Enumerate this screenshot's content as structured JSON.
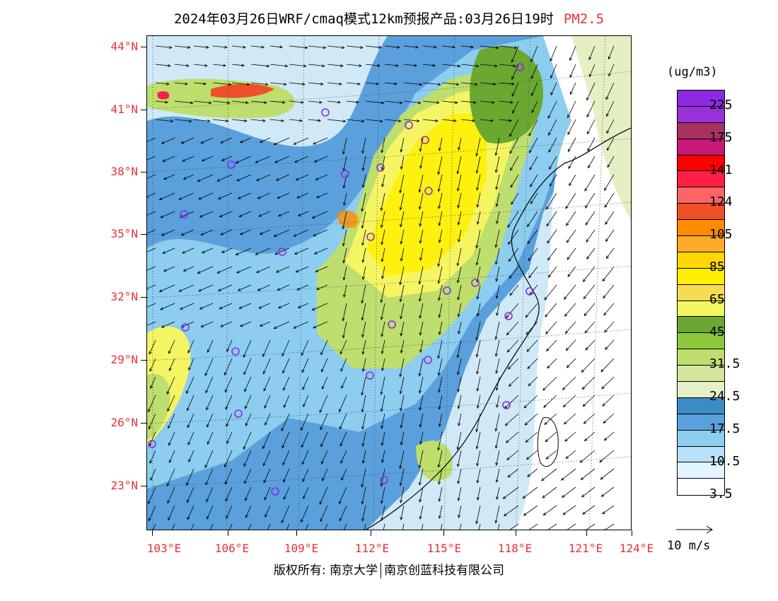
{
  "title": {
    "main": "2024年03月26日WRF/cmaq模式12km预报产品:03月26日19时",
    "species": "PM2.5",
    "species_color": "#e8313a"
  },
  "map": {
    "lat_labels": [
      "44°N",
      "41°N",
      "38°N",
      "35°N",
      "32°N",
      "29°N",
      "26°N",
      "23°N"
    ],
    "lon_labels": [
      "103°E",
      "106°E",
      "109°E",
      "112°E",
      "115°E",
      "118°E",
      "121°E",
      "124°E"
    ],
    "label_color": "#e8313a"
  },
  "colorbar": {
    "unit": "(ug/m3)",
    "colors": [
      "#8a2be2",
      "#9b30d8",
      "#a8325f",
      "#c8187a",
      "#ff0000",
      "#ff1e46",
      "#ff6464",
      "#f05028",
      "#ff8c00",
      "#ffaa28",
      "#ffd700",
      "#ffee00",
      "#f5dc50",
      "#f5f564",
      "#6aa832",
      "#8cc83c",
      "#bede6e",
      "#d2e69b",
      "#e6f0c8",
      "#3c8cc8",
      "#5aa0dc",
      "#8ccdf0",
      "#b9e1fa",
      "#e1f5ff",
      "#ffffff"
    ],
    "labels": [
      "225",
      "175",
      "141",
      "124",
      "105",
      "85",
      "65",
      "45",
      "31.5",
      "24.5",
      "17.5",
      "10.5",
      "3.5"
    ]
  },
  "vector_legend": {
    "label": "10 m/s"
  },
  "footer": {
    "left": "版权所有: 南京大学",
    "right": "南京创蓝科技有限公司"
  }
}
